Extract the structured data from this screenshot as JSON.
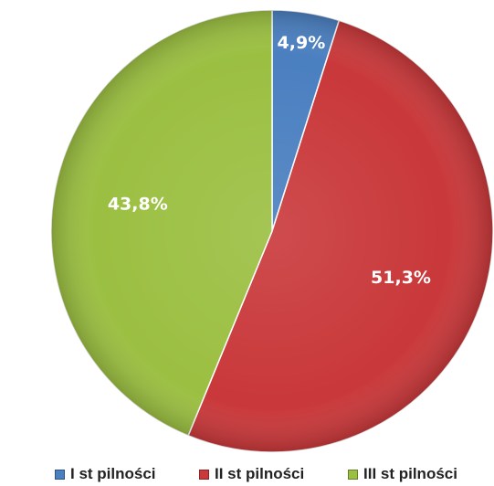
{
  "chart_data": {
    "type": "pie",
    "categories": [
      "I st pilności",
      "II st pilności",
      "III st pilności"
    ],
    "values": [
      4.9,
      51.3,
      43.8
    ],
    "labels": [
      "4,9%",
      "51,3%",
      "43,8%"
    ],
    "colors": [
      "#4a7fc0",
      "#c9383a",
      "#9bbf41"
    ],
    "start_angle_deg": 0,
    "direction": "clockwise",
    "legend_position": "bottom"
  }
}
